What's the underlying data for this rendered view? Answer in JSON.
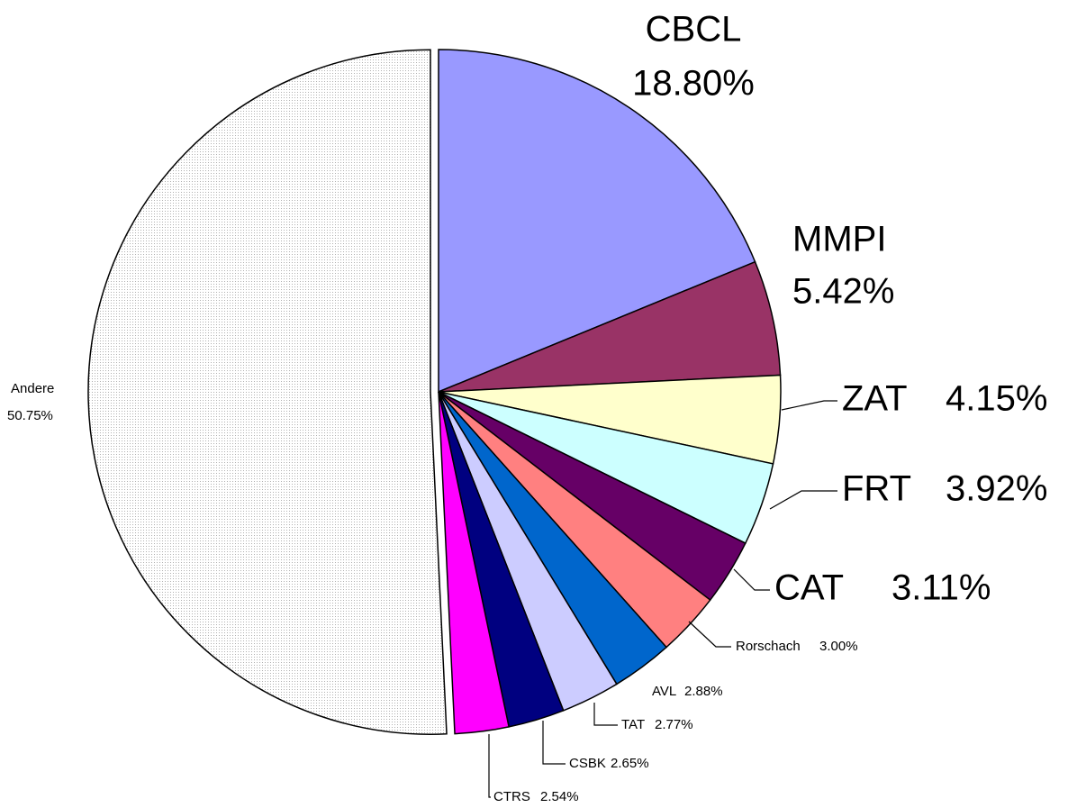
{
  "chart_data": {
    "type": "pie",
    "categories": [
      "CBCL",
      "MMPI",
      "ZAT",
      "FRT",
      "CAT",
      "Rorschach",
      "AVL",
      "TAT",
      "CSBK",
      "CTRS",
      "Andere"
    ],
    "values": [
      18.8,
      5.42,
      4.15,
      3.92,
      3.11,
      3.0,
      2.88,
      2.77,
      2.65,
      2.54,
      50.75
    ],
    "value_labels": [
      "18.80%",
      "5.42%",
      "4.15%",
      "3.92%",
      "3.11%",
      "3.00%",
      "2.88%",
      "2.77%",
      "2.65%",
      "2.54%",
      "50.75%"
    ],
    "colors": [
      "#9999ff",
      "#993366",
      "#ffffcc",
      "#ccffff",
      "#660066",
      "#ff8080",
      "#0066cc",
      "#ccccff",
      "#000080",
      "#ff00ff",
      "#b0b0b0"
    ]
  }
}
